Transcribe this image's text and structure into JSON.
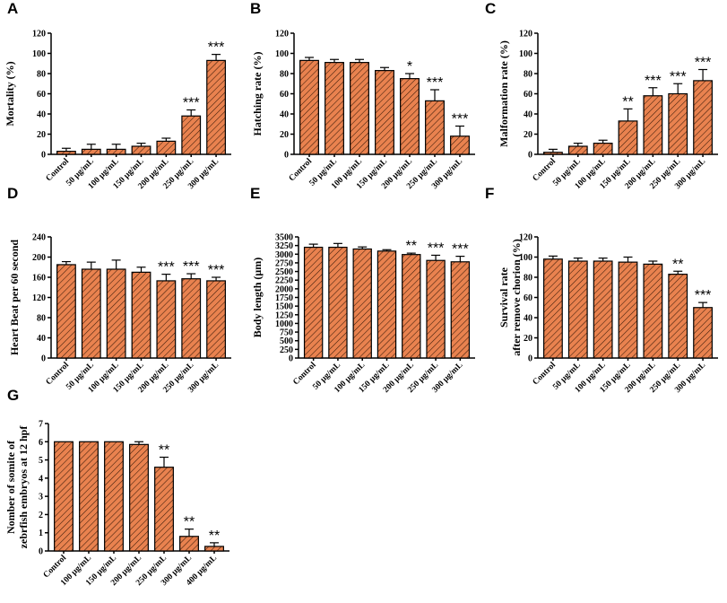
{
  "style": {
    "bar_fill": "#e9824f",
    "hatch_color": "#3a1a08"
  },
  "chart_data": [
    {
      "panel": "A",
      "type": "bar",
      "ylabel": "Mortality (%)",
      "ylim": [
        0,
        120
      ],
      "yticks": [
        0,
        20,
        40,
        60,
        80,
        100,
        120
      ],
      "categories": [
        "Control",
        "50 μg/mL",
        "100 μg/mL",
        "150 μg/mL",
        "200 μg/mL",
        "250 μg/mL",
        "300 μg/mL"
      ],
      "values": [
        3,
        5,
        5,
        8,
        13,
        38,
        93
      ],
      "errors": [
        3,
        5,
        5,
        3,
        3,
        6,
        6
      ],
      "significance": [
        "",
        "",
        "",
        "",
        "",
        "***",
        "***"
      ]
    },
    {
      "panel": "B",
      "type": "bar",
      "ylabel": "Hatching rate (%)",
      "ylim": [
        0,
        120
      ],
      "yticks": [
        0,
        20,
        40,
        60,
        80,
        100,
        120
      ],
      "categories": [
        "Control",
        "50 μg/mL",
        "100 μg/mL",
        "150 μg/mL",
        "200 μg/mL",
        "250 μg/mL",
        "300 μg/mL"
      ],
      "values": [
        93,
        91,
        91,
        83,
        75,
        53,
        18
      ],
      "errors": [
        3,
        3,
        3,
        3,
        5,
        11,
        10
      ],
      "significance": [
        "",
        "",
        "",
        "",
        "*",
        "***",
        "***"
      ]
    },
    {
      "panel": "C",
      "type": "bar",
      "ylabel": "Malformation rate (%)",
      "ylim": [
        0,
        120
      ],
      "yticks": [
        0,
        20,
        40,
        60,
        80,
        100,
        120
      ],
      "categories": [
        "Control",
        "50 μg/mL",
        "100 μg/mL",
        "150 μg/mL",
        "200 μg/mL",
        "250 μg/mL",
        "300 μg/mL"
      ],
      "values": [
        2,
        8,
        11,
        33,
        58,
        60,
        73
      ],
      "errors": [
        3,
        3,
        3,
        12,
        8,
        10,
        11
      ],
      "significance": [
        "",
        "",
        "",
        "**",
        "***",
        "***",
        "***"
      ]
    },
    {
      "panel": "D",
      "type": "bar",
      "ylabel": "Heart Beat per 60 second",
      "ylim": [
        0,
        240
      ],
      "yticks": [
        0,
        40,
        80,
        120,
        160,
        200,
        240
      ],
      "categories": [
        "Control",
        "50 μg/mL",
        "100 μg/mL",
        "150 μg/mL",
        "200 μg/mL",
        "250 μg/mL",
        "300 μg/mL"
      ],
      "values": [
        185,
        176,
        176,
        170,
        153,
        157,
        153
      ],
      "errors": [
        6,
        14,
        18,
        10,
        13,
        10,
        7
      ],
      "significance": [
        "",
        "",
        "",
        "",
        "***",
        "***",
        "***"
      ]
    },
    {
      "panel": "E",
      "type": "bar",
      "ylabel": "Body length (μm)",
      "ylim": [
        0,
        3500
      ],
      "yticks": [
        0,
        250,
        500,
        750,
        1000,
        1250,
        1500,
        1750,
        2000,
        2250,
        2500,
        2750,
        3000,
        3250,
        3500
      ],
      "categories": [
        "Control",
        "50 μg/mL",
        "100 μg/mL",
        "150 μg/mL",
        "200 μg/mL",
        "250 μg/mL",
        "300 μg/mL"
      ],
      "values": [
        3200,
        3200,
        3150,
        3090,
        2990,
        2820,
        2780
      ],
      "errors": [
        90,
        110,
        60,
        40,
        40,
        150,
        160
      ],
      "significance": [
        "",
        "",
        "",
        "",
        "**",
        "***",
        "***"
      ]
    },
    {
      "panel": "F",
      "type": "bar",
      "ylabel_lines": [
        "Survival rate",
        "after remove chorion  (%)"
      ],
      "ylim": [
        0,
        120
      ],
      "yticks": [
        0,
        20,
        40,
        60,
        80,
        100,
        120
      ],
      "categories": [
        "Control",
        "50 μg/mL",
        "100 μg/mL",
        "150 μg/mL",
        "200 μg/mL",
        "250 μg/mL",
        "300 μg/mL"
      ],
      "values": [
        98,
        96,
        96,
        95,
        93,
        83,
        50
      ],
      "errors": [
        3,
        3,
        3,
        5,
        3,
        3,
        5
      ],
      "significance": [
        "",
        "",
        "",
        "",
        "",
        "**",
        "***"
      ]
    },
    {
      "panel": "G",
      "type": "bar",
      "ylabel_lines": [
        "Nomber of somite of",
        "zebrfish embryos at 12 hpf"
      ],
      "ylim": [
        0,
        7
      ],
      "yticks": [
        0,
        1,
        2,
        3,
        4,
        5,
        6,
        7
      ],
      "categories": [
        "Control",
        "100 μg/mL",
        "150 μg/mL",
        "200 μg/mL",
        "250 μg/mL",
        "300 μg/mL",
        "400 μg/mL"
      ],
      "values": [
        6,
        6,
        6,
        5.85,
        4.6,
        0.8,
        0.25
      ],
      "errors": [
        0,
        0,
        0,
        0.15,
        0.55,
        0.4,
        0.2
      ],
      "significance": [
        "",
        "",
        "",
        "",
        "**",
        "**",
        "**"
      ]
    }
  ]
}
